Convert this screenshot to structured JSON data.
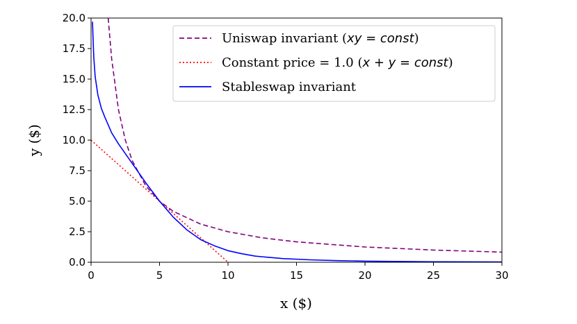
{
  "chart_data": {
    "type": "line",
    "title": "",
    "xlabel": "x ($)",
    "ylabel": "y ($)",
    "xlim": [
      0,
      30
    ],
    "ylim": [
      0,
      20
    ],
    "xticks": [
      "0",
      "5",
      "10",
      "15",
      "20",
      "25",
      "30"
    ],
    "yticks": [
      "0.0",
      "2.5",
      "5.0",
      "7.5",
      "10.0",
      "12.5",
      "15.0",
      "17.5",
      "20.0"
    ],
    "grid": false,
    "legend_position": "top-right",
    "series": [
      {
        "name": "Uniswap invariant (xy = const)",
        "legend_plain": "Uniswap invariant (",
        "legend_math": "xy = const",
        "legend_tail": ")",
        "style": "dashed",
        "color": "#800080",
        "x": [
          1.25,
          1.5,
          2,
          2.5,
          3,
          4,
          5,
          6,
          8,
          10,
          12.5,
          15,
          20,
          25,
          30
        ],
        "y": [
          20,
          16.67,
          12.5,
          10,
          8.33,
          6.25,
          5,
          4.17,
          3.125,
          2.5,
          2,
          1.67,
          1.25,
          1,
          0.83
        ]
      },
      {
        "name": "Constant price = 1.0 (x + y = const)",
        "legend_plain": "Constant price = 1.0 (",
        "legend_math": "x + y = const",
        "legend_tail": ")",
        "style": "dotted",
        "color": "#ff0000",
        "x": [
          0,
          10
        ],
        "y": [
          10,
          0
        ]
      },
      {
        "name": "Stableswap invariant",
        "legend_plain": "Stableswap invariant",
        "legend_math": "",
        "legend_tail": "",
        "style": "solid",
        "color": "#0000ff",
        "x": [
          0.1,
          0.2,
          0.3,
          0.5,
          0.75,
          1,
          1.5,
          2,
          3,
          4,
          5,
          6,
          7,
          8,
          9,
          10,
          11,
          12,
          14,
          16,
          18,
          20,
          25,
          30
        ],
        "y": [
          19.7,
          16.8,
          15.2,
          13.7,
          12.6,
          11.9,
          10.6,
          9.7,
          8.1,
          6.5,
          5.0,
          3.7,
          2.65,
          1.85,
          1.35,
          0.95,
          0.7,
          0.5,
          0.3,
          0.2,
          0.13,
          0.09,
          0.04,
          0.02
        ]
      }
    ]
  }
}
